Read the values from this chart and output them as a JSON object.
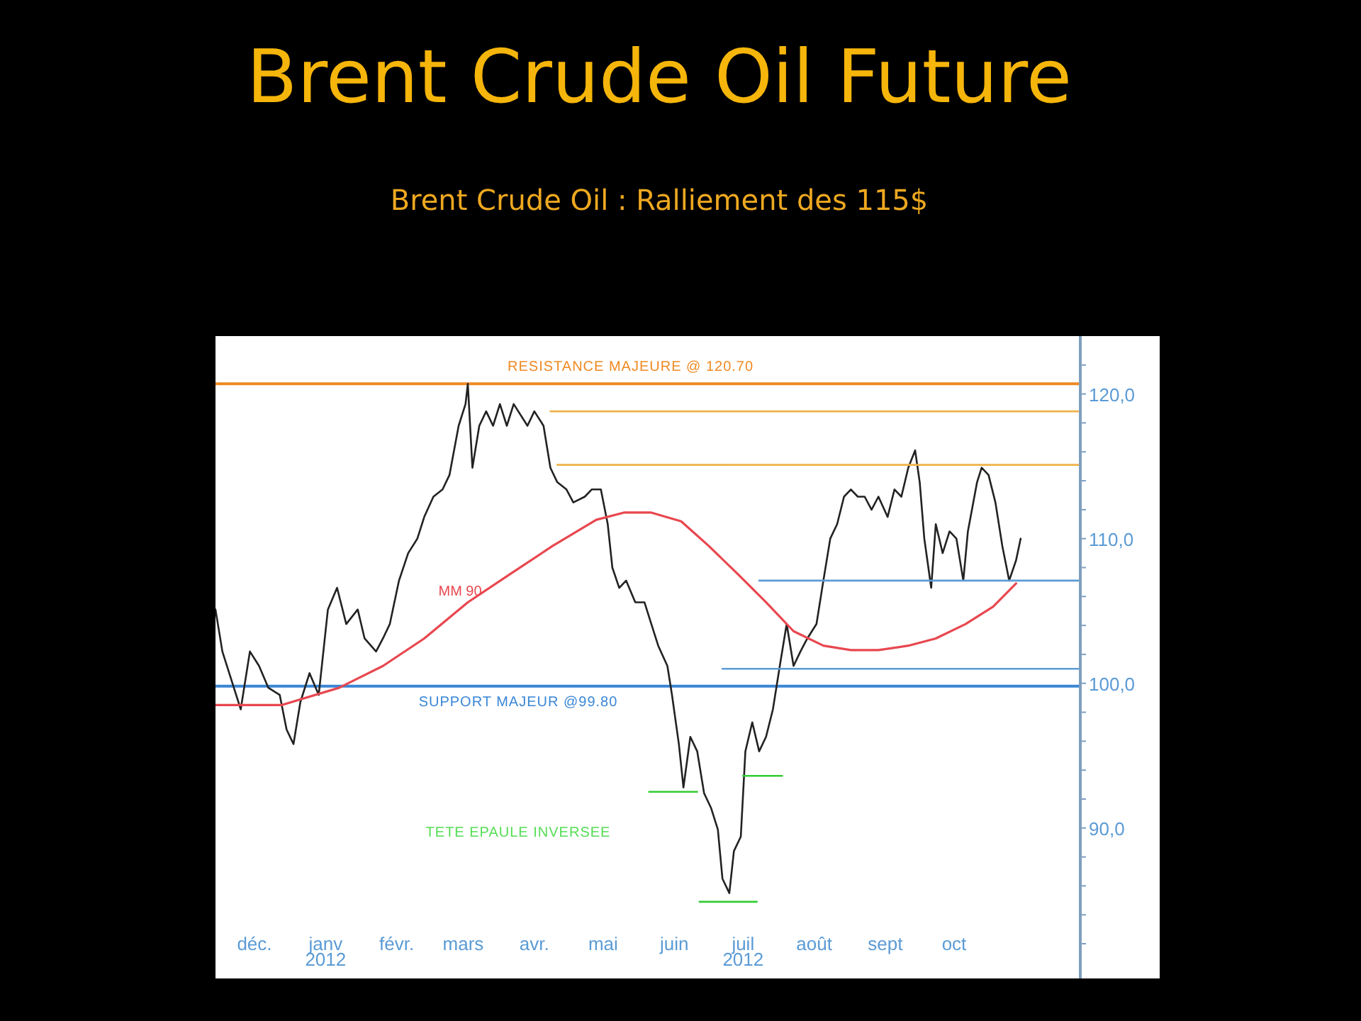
{
  "chart_data": {
    "type": "line",
    "title": "Brent Crude Oil Future",
    "subtitle": "Brent Crude Oil : Ralliement des 115$",
    "xlim": [
      "2011-11-14",
      "2012-11-25"
    ],
    "ylim": [
      79.6,
      124
    ],
    "xticks": [
      {
        "value": "2011-12-01",
        "label": "déc."
      },
      {
        "value": "2012-01-01",
        "label": "janv\n2012"
      },
      {
        "value": "2012-02-01",
        "label": "févr."
      },
      {
        "value": "2012-03-01",
        "label": "mars"
      },
      {
        "value": "2012-04-01",
        "label": "avr."
      },
      {
        "value": "2012-05-01",
        "label": "mai"
      },
      {
        "value": "2012-06-01",
        "label": "juin"
      },
      {
        "value": "2012-07-01",
        "label": "juil\n2012"
      },
      {
        "value": "2012-08-01",
        "label": "août"
      },
      {
        "value": "2012-09-01",
        "label": "sept"
      },
      {
        "value": "2012-10-01",
        "label": "oct"
      }
    ],
    "yticks": [
      {
        "value": 82,
        "label": null
      },
      {
        "value": 84,
        "label": null
      },
      {
        "value": 86,
        "label": null
      },
      {
        "value": 88,
        "label": null
      },
      {
        "value": 90,
        "label": "90,0"
      },
      {
        "value": 92,
        "label": null
      },
      {
        "value": 94,
        "label": null
      },
      {
        "value": 96,
        "label": null
      },
      {
        "value": 98,
        "label": null
      },
      {
        "value": 100,
        "label": "100,0"
      },
      {
        "value": 102,
        "label": null
      },
      {
        "value": 104,
        "label": null
      },
      {
        "value": 106,
        "label": null
      },
      {
        "value": 108,
        "label": null
      },
      {
        "value": 110,
        "label": "110,0"
      },
      {
        "value": 112,
        "label": null
      },
      {
        "value": 114,
        "label": null
      },
      {
        "value": 116,
        "label": null
      },
      {
        "value": 118,
        "label": null
      },
      {
        "value": 120,
        "label": "120,0"
      },
      {
        "value": 122,
        "label": null
      }
    ],
    "grid": false,
    "series": [
      {
        "color": "#222222",
        "x": [
          "2011-11-14",
          "2011-11-17",
          "2011-11-21",
          "2011-11-25",
          "2011-11-29",
          "2011-12-03",
          "2011-12-07",
          "2011-12-12",
          "2011-12-15",
          "2011-12-18",
          "2011-12-21",
          "2011-12-25",
          "2011-12-29",
          "2012-01-02",
          "2012-01-06",
          "2012-01-10",
          "2012-01-15",
          "2012-01-18",
          "2012-01-23",
          "2012-01-26",
          "2012-01-29",
          "2012-02-02",
          "2012-02-06",
          "2012-02-10",
          "2012-02-13",
          "2012-02-17",
          "2012-02-21",
          "2012-02-24",
          "2012-02-28",
          "2012-03-02",
          "2012-03-03",
          "2012-03-05",
          "2012-03-08",
          "2012-03-11",
          "2012-03-14",
          "2012-03-17",
          "2012-03-20",
          "2012-03-23",
          "2012-03-25",
          "2012-03-29",
          "2012-04-01",
          "2012-04-05",
          "2012-04-08",
          "2012-04-11",
          "2012-04-15",
          "2012-04-18",
          "2012-04-23",
          "2012-04-26",
          "2012-04-30",
          "2012-05-03",
          "2012-05-05",
          "2012-05-08",
          "2012-05-11",
          "2012-05-15",
          "2012-05-19",
          "2012-05-22",
          "2012-05-25",
          "2012-05-29",
          "2012-05-31",
          "2012-06-03",
          "2012-06-05",
          "2012-06-08",
          "2012-06-11",
          "2012-06-14",
          "2012-06-17",
          "2012-06-20",
          "2012-06-22",
          "2012-06-25",
          "2012-06-27",
          "2012-06-30",
          "2012-07-02",
          "2012-07-05",
          "2012-07-08",
          "2012-07-11",
          "2012-07-14",
          "2012-07-17",
          "2012-07-20",
          "2012-07-23",
          "2012-07-26",
          "2012-07-29",
          "2012-08-02",
          "2012-08-05",
          "2012-08-08",
          "2012-08-11",
          "2012-08-14",
          "2012-08-17",
          "2012-08-20",
          "2012-08-23",
          "2012-08-26",
          "2012-08-29",
          "2012-09-02",
          "2012-09-05",
          "2012-09-08",
          "2012-09-11",
          "2012-09-14",
          "2012-09-16",
          "2012-09-18",
          "2012-09-21",
          "2012-09-23",
          "2012-09-26",
          "2012-09-29",
          "2012-10-02",
          "2012-10-05",
          "2012-10-07",
          "2012-10-11",
          "2012-10-13",
          "2012-10-16",
          "2012-10-19",
          "2012-10-22",
          "2012-10-25",
          "2012-10-28",
          "2012-10-30"
        ],
        "values": [
          105.1,
          102.2,
          100.2,
          98.2,
          102.2,
          101.2,
          99.7,
          99.2,
          96.8,
          95.8,
          98.7,
          100.7,
          99.2,
          105.1,
          106.6,
          104.1,
          105.1,
          103.1,
          102.2,
          103.1,
          104.1,
          107.1,
          109.0,
          110.0,
          111.5,
          112.9,
          113.4,
          114.4,
          117.8,
          119.3,
          120.7,
          114.9,
          117.8,
          118.8,
          117.8,
          119.3,
          117.8,
          119.3,
          118.8,
          117.8,
          118.8,
          117.8,
          114.9,
          113.9,
          113.4,
          112.5,
          112.9,
          113.4,
          113.4,
          111.0,
          108.0,
          106.6,
          107.1,
          105.6,
          105.6,
          104.1,
          102.6,
          101.2,
          99.2,
          95.8,
          92.8,
          96.3,
          95.3,
          92.4,
          91.4,
          89.9,
          86.5,
          85.5,
          88.4,
          89.4,
          95.3,
          97.3,
          95.3,
          96.3,
          98.2,
          101.2,
          104.1,
          101.2,
          102.2,
          103.1,
          104.1,
          107.1,
          110.0,
          111.0,
          112.9,
          113.4,
          112.9,
          112.9,
          112.0,
          112.9,
          111.5,
          113.4,
          112.9,
          114.9,
          116.1,
          113.9,
          110.0,
          106.6,
          111.0,
          109.0,
          110.5,
          110.0,
          107.1,
          110.5,
          113.9,
          114.9,
          114.4,
          112.5,
          109.5,
          107.1,
          108.5,
          110.0
        ]
      },
      {
        "name": "MM 90",
        "color": "#e8474f",
        "x": [
          "2011-11-14",
          "2011-12-13",
          "2012-01-07",
          "2012-01-26",
          "2012-02-13",
          "2012-03-03",
          "2012-03-21",
          "2012-04-09",
          "2012-04-28",
          "2012-05-10",
          "2012-05-22",
          "2012-06-04",
          "2012-06-16",
          "2012-06-29",
          "2012-07-11",
          "2012-07-23",
          "2012-08-05",
          "2012-08-17",
          "2012-08-29",
          "2012-09-11",
          "2012-09-23",
          "2012-10-06",
          "2012-10-18",
          "2012-10-28"
        ],
        "values": [
          98.5,
          98.5,
          99.7,
          101.2,
          103.1,
          105.6,
          107.5,
          109.5,
          111.3,
          111.8,
          111.8,
          111.2,
          109.5,
          107.5,
          105.6,
          103.6,
          102.6,
          102.3,
          102.3,
          102.6,
          103.1,
          104.1,
          105.3,
          106.9
        ]
      },
      {
        "color": "#f0b24a",
        "x": [
          "2012-04-08",
          "2012-11-25"
        ],
        "values": [
          118.8,
          118.8
        ]
      },
      {
        "color": "#f0b24a",
        "x": [
          "2012-04-11",
          "2012-11-25"
        ],
        "values": [
          115.1,
          115.1
        ]
      },
      {
        "color": "#5b9bd5",
        "x": [
          "2012-07-08",
          "2012-11-25"
        ],
        "values": [
          107.1,
          107.1
        ]
      },
      {
        "color": "#5b9bd5",
        "x": [
          "2012-06-22",
          "2012-11-25"
        ],
        "values": [
          101.0,
          101.0
        ]
      },
      {
        "color": "#33cc33",
        "x": [
          "2012-05-21",
          "2012-06-11"
        ],
        "values": [
          92.5,
          92.5
        ]
      },
      {
        "color": "#33cc33",
        "x": [
          "2012-07-01",
          "2012-07-18"
        ],
        "values": [
          93.6,
          93.6
        ]
      },
      {
        "color": "#33cc33",
        "x": [
          "2012-06-12",
          "2012-07-07"
        ],
        "values": [
          84.9,
          84.9
        ]
      }
    ],
    "ref_lines": [
      {
        "axis": "y",
        "value": 120.7,
        "label": "RESISTANCE MAJEURE @ 120.70",
        "color": "#f08a24"
      },
      {
        "axis": "y",
        "value": 99.8,
        "label": "SUPPORT  MAJEUR @99.80",
        "color": "#3a86d6"
      }
    ],
    "annotations": [
      "TETE EPAULE INVERSEE"
    ]
  }
}
